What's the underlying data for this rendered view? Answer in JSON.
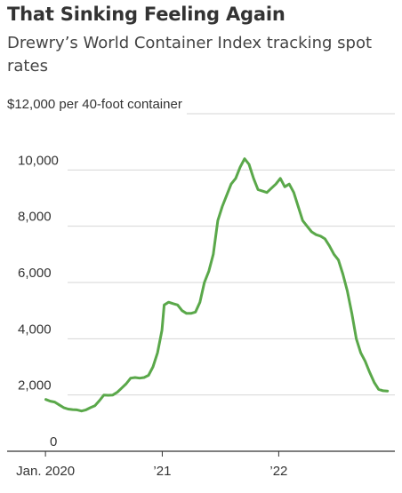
{
  "header": {
    "title": "That Sinking Feeling Again",
    "subtitle": "Drewry’s World Container Index tracking spot rates"
  },
  "chart_data": {
    "type": "line",
    "title": "That Sinking Feeling Again",
    "subtitle": "Drewry’s World Container Index tracking spot rates",
    "ylabel": "per 40-foot container",
    "xlabel": "",
    "ylim": [
      0,
      12000
    ],
    "xlim": [
      "2019-12-01",
      "2022-12-31"
    ],
    "grid": true,
    "y_ticks": [
      {
        "value": 12000,
        "label": "$12,000"
      },
      {
        "value": 10000,
        "label": "10,000"
      },
      {
        "value": 8000,
        "label": "8,000"
      },
      {
        "value": 6000,
        "label": "6,000"
      },
      {
        "value": 4000,
        "label": "4,000"
      },
      {
        "value": 2000,
        "label": "2,000"
      },
      {
        "value": 0,
        "label": "0"
      }
    ],
    "x_ticks": [
      {
        "value": "2020-01-01",
        "label": "Jan. 2020"
      },
      {
        "value": "2021-01-01",
        "label": "’21"
      },
      {
        "value": "2022-01-01",
        "label": "’22"
      }
    ],
    "line_color": "#5aa84a",
    "series": [
      {
        "points": [
          [
            "2020-01-02",
            1840
          ],
          [
            "2020-01-16",
            1780
          ],
          [
            "2020-01-30",
            1750
          ],
          [
            "2020-02-13",
            1650
          ],
          [
            "2020-02-27",
            1550
          ],
          [
            "2020-03-12",
            1500
          ],
          [
            "2020-03-26",
            1480
          ],
          [
            "2020-04-09",
            1470
          ],
          [
            "2020-04-23",
            1430
          ],
          [
            "2020-05-07",
            1470
          ],
          [
            "2020-05-21",
            1550
          ],
          [
            "2020-06-04",
            1620
          ],
          [
            "2020-06-18",
            1800
          ],
          [
            "2020-07-02",
            2000
          ],
          [
            "2020-07-16",
            1990
          ],
          [
            "2020-07-30",
            2000
          ],
          [
            "2020-08-13",
            2100
          ],
          [
            "2020-08-27",
            2250
          ],
          [
            "2020-09-10",
            2400
          ],
          [
            "2020-09-24",
            2600
          ],
          [
            "2020-10-08",
            2620
          ],
          [
            "2020-10-22",
            2600
          ],
          [
            "2020-11-05",
            2620
          ],
          [
            "2020-11-19",
            2700
          ],
          [
            "2020-12-03",
            3000
          ],
          [
            "2020-12-17",
            3500
          ],
          [
            "2020-12-31",
            4300
          ],
          [
            "2021-01-07",
            5200
          ],
          [
            "2021-01-21",
            5300
          ],
          [
            "2021-02-04",
            5250
          ],
          [
            "2021-02-18",
            5200
          ],
          [
            "2021-03-04",
            5000
          ],
          [
            "2021-03-18",
            4900
          ],
          [
            "2021-04-01",
            4900
          ],
          [
            "2021-04-15",
            4950
          ],
          [
            "2021-04-29",
            5300
          ],
          [
            "2021-05-13",
            6000
          ],
          [
            "2021-05-27",
            6400
          ],
          [
            "2021-06-10",
            7000
          ],
          [
            "2021-06-24",
            8200
          ],
          [
            "2021-07-08",
            8700
          ],
          [
            "2021-07-22",
            9100
          ],
          [
            "2021-08-05",
            9500
          ],
          [
            "2021-08-19",
            9700
          ],
          [
            "2021-09-02",
            10100
          ],
          [
            "2021-09-16",
            10400
          ],
          [
            "2021-09-30",
            10200
          ],
          [
            "2021-10-14",
            9700
          ],
          [
            "2021-10-28",
            9300
          ],
          [
            "2021-11-11",
            9250
          ],
          [
            "2021-11-25",
            9200
          ],
          [
            "2021-12-09",
            9350
          ],
          [
            "2021-12-23",
            9500
          ],
          [
            "2022-01-06",
            9700
          ],
          [
            "2022-01-20",
            9400
          ],
          [
            "2022-02-03",
            9500
          ],
          [
            "2022-02-17",
            9200
          ],
          [
            "2022-03-03",
            8700
          ],
          [
            "2022-03-17",
            8200
          ],
          [
            "2022-03-31",
            8000
          ],
          [
            "2022-04-14",
            7800
          ],
          [
            "2022-04-28",
            7700
          ],
          [
            "2022-05-12",
            7650
          ],
          [
            "2022-05-26",
            7550
          ],
          [
            "2022-06-09",
            7300
          ],
          [
            "2022-06-23",
            7000
          ],
          [
            "2022-07-07",
            6800
          ],
          [
            "2022-07-21",
            6300
          ],
          [
            "2022-08-04",
            5700
          ],
          [
            "2022-08-18",
            4900
          ],
          [
            "2022-09-01",
            4000
          ],
          [
            "2022-09-15",
            3500
          ],
          [
            "2022-09-29",
            3200
          ],
          [
            "2022-10-13",
            2800
          ],
          [
            "2022-10-27",
            2450
          ],
          [
            "2022-11-10",
            2200
          ],
          [
            "2022-11-24",
            2150
          ],
          [
            "2022-12-08",
            2140
          ]
        ]
      }
    ]
  }
}
